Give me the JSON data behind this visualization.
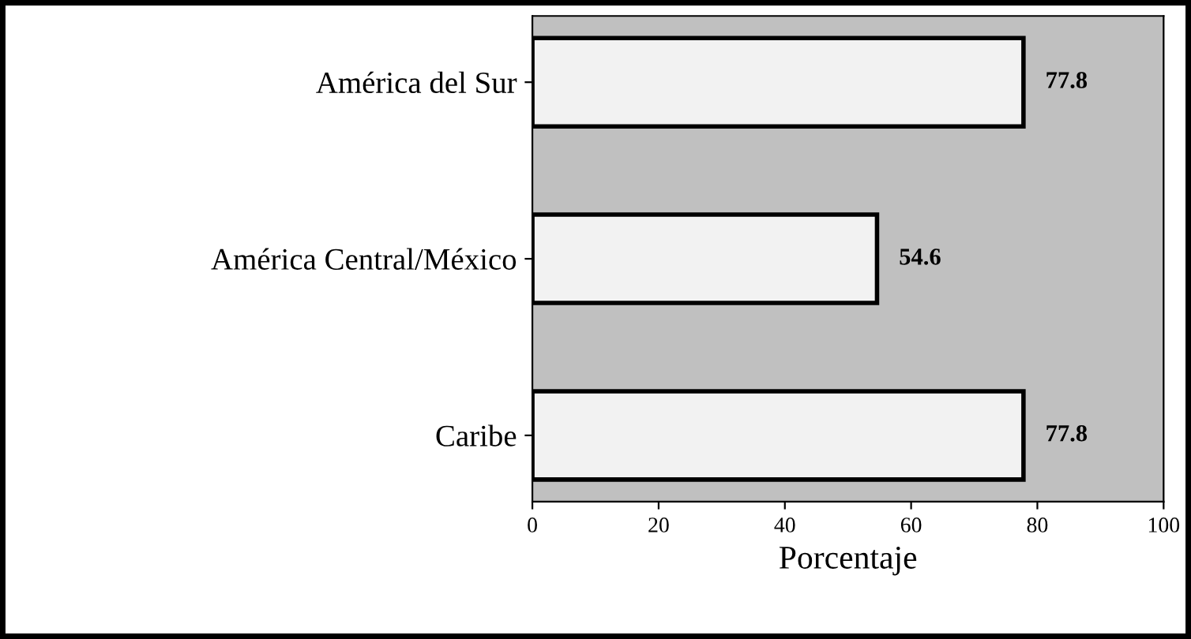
{
  "chart_data": {
    "type": "bar",
    "orientation": "horizontal",
    "xlabel": "Porcentaje",
    "categories": [
      "América del Sur",
      "América Central/México",
      "Caribe"
    ],
    "values": [
      77.8,
      54.6,
      77.8
    ],
    "color": "#f2f2f2",
    "xlim": [
      0,
      100
    ],
    "xticks": [
      0,
      20,
      40,
      60,
      80,
      100
    ],
    "data_labels": true,
    "grid": false,
    "legend": false
  }
}
